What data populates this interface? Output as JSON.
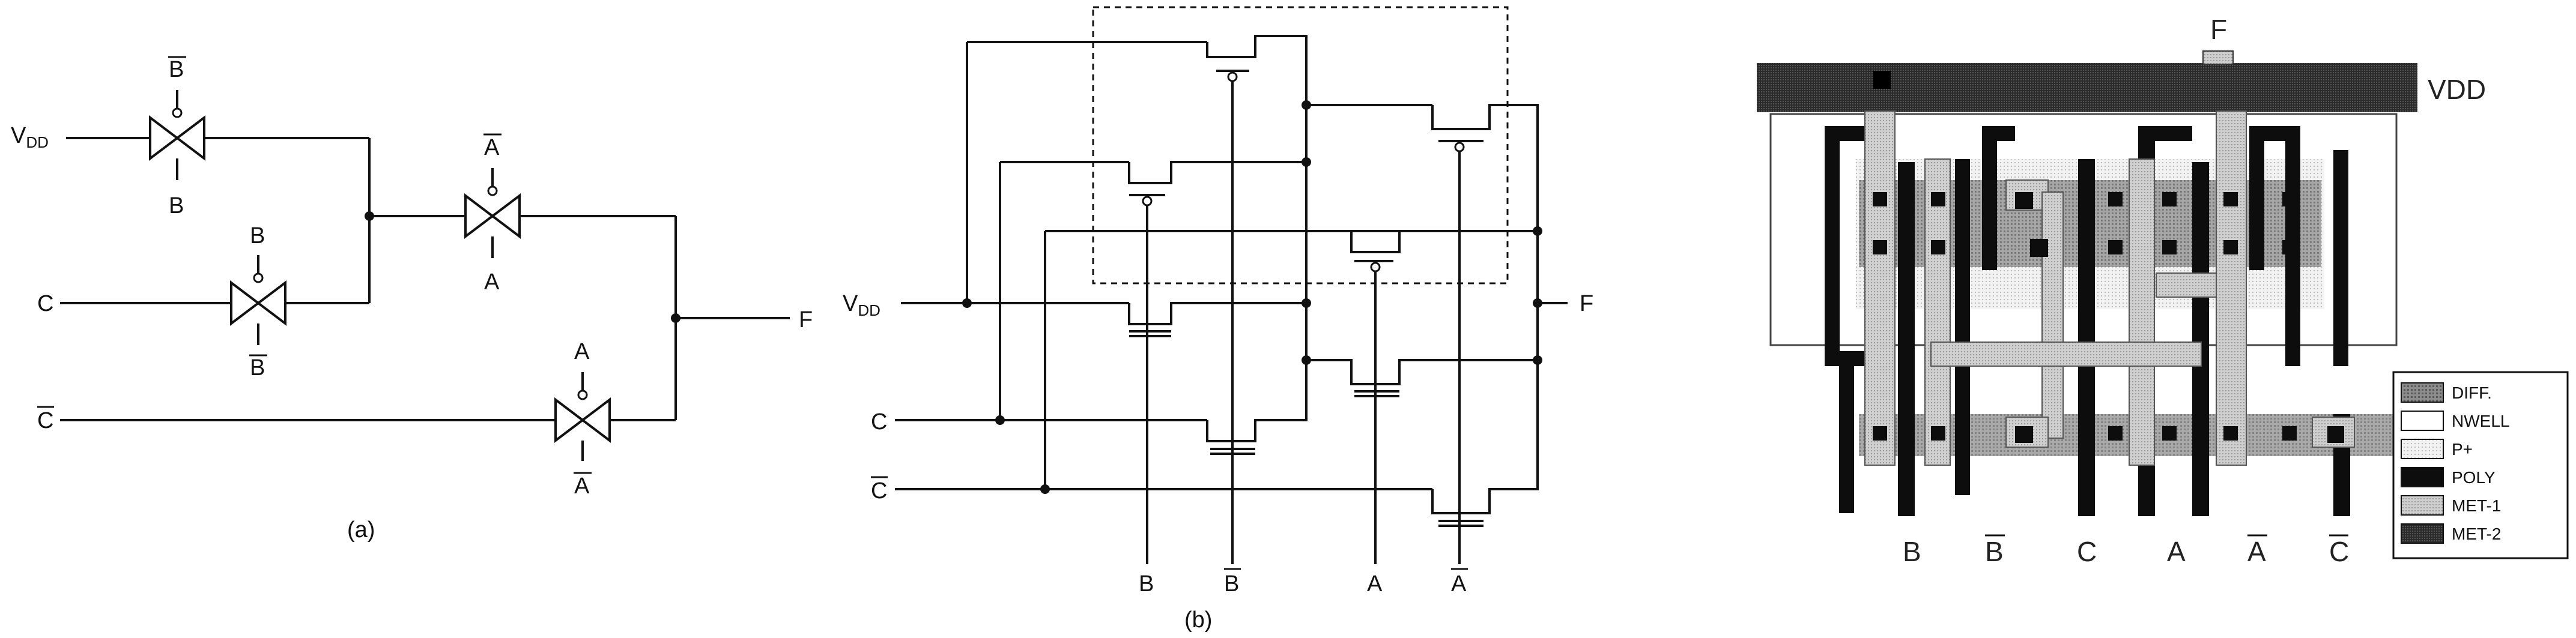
{
  "figure_a": {
    "caption": "(a)",
    "vdd": "VDD",
    "vdd_main": "V",
    "vdd_sub": "DD",
    "c": "C",
    "c_bar": "C",
    "f": "F",
    "tg1_top": "B",
    "tg1_bottom": "B",
    "tg2_top": "B",
    "tg2_bottom": "B",
    "tg3_top": "A",
    "tg3_bottom": "A",
    "tg4_top": "A",
    "tg4_bottom": "A"
  },
  "figure_b": {
    "caption": "(b)",
    "vdd_main": "V",
    "vdd_sub": "DD",
    "c": "C",
    "c_bar": "C",
    "f": "F",
    "b": "B",
    "b_bar": "B",
    "a": "A",
    "a_bar": "A"
  },
  "figure_c": {
    "f": "F",
    "vdd": "VDD",
    "bottom_labels": [
      "B",
      "B",
      "C",
      "A",
      "A",
      "C"
    ],
    "bottom_overbar": [
      false,
      true,
      false,
      false,
      true,
      true
    ],
    "legend": [
      {
        "label": "DIFF.",
        "pattern": "diff"
      },
      {
        "label": "NWELL",
        "pattern": "nwell"
      },
      {
        "label": "P+",
        "pattern": "pplus"
      },
      {
        "label": "POLY",
        "pattern": "poly"
      },
      {
        "label": "MET-1",
        "pattern": "met1"
      },
      {
        "label": "MET-2",
        "pattern": "met2"
      }
    ]
  }
}
